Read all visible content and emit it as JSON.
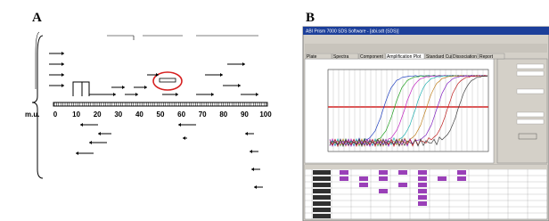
{
  "panel_a": {
    "label": "A",
    "scale_label": "m.u.",
    "scale": [
      0,
      10,
      20,
      30,
      40,
      50,
      60,
      70,
      80,
      90,
      100
    ]
  },
  "panel_b": {
    "label": "B",
    "window_title": "ABI Prism 7000 SDS Software - [abi.sdt (SDS)]",
    "tabs": [
      "Plate",
      "Spectra",
      "Component",
      "Amplification Plot",
      "Standard Curve",
      "Dissociation",
      "Report"
    ]
  }
}
